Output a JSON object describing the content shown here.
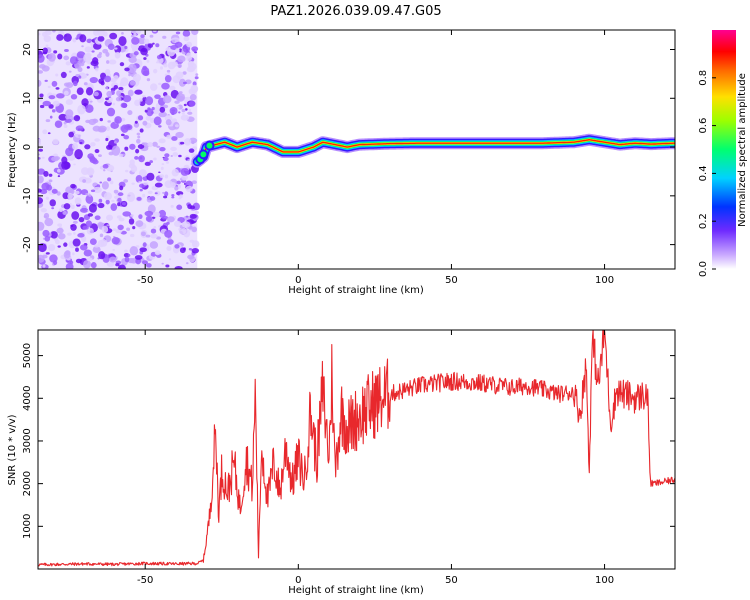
{
  "figure": {
    "title": "PAZ1.2026.039.09.47.G05"
  },
  "chart_data": [
    {
      "type": "heatmap",
      "name": "spectrogram",
      "xlabel": "Height of straight line (km)",
      "ylabel": "Frequency (Hz)",
      "xlim": [
        -85,
        123
      ],
      "ylim": [
        -25,
        24
      ],
      "xticks": [
        -50,
        0,
        50,
        100
      ],
      "yticks": [
        -20,
        -10,
        0,
        10,
        20
      ],
      "noise_region_x": [
        -85,
        -33
      ],
      "signal_ridge": {
        "x": [
          -33,
          -31,
          -30,
          -27,
          -24,
          -20,
          -15,
          -10,
          -5,
          0,
          5,
          8,
          12,
          16,
          20,
          30,
          40,
          60,
          80,
          90,
          95,
          100,
          105,
          110,
          115,
          123
        ],
        "freq": [
          -3,
          -2,
          0,
          0.5,
          1,
          0,
          1,
          0.5,
          -1,
          -1,
          0,
          1,
          0.5,
          0,
          0.5,
          0.7,
          0.8,
          0.8,
          0.8,
          1.0,
          1.5,
          1.0,
          0.5,
          0.8,
          0.6,
          0.8
        ]
      },
      "colorbar": {
        "label": "Normalized spectral amplitude",
        "range": [
          0.0,
          1.0
        ],
        "ticks": [
          "0.0",
          "0.2",
          "0.4",
          "0.6",
          "0.8"
        ],
        "tick_values": [
          0.0,
          0.2,
          0.4,
          0.6,
          0.8
        ]
      }
    },
    {
      "type": "line",
      "name": "snr",
      "xlabel": "Height of straight line (km)",
      "ylabel": "SNR (10 * v/v)",
      "xlim": [
        -85,
        123
      ],
      "ylim": [
        0,
        5600
      ],
      "xticks": [
        -50,
        0,
        50,
        100
      ],
      "yticks": [
        1000,
        2000,
        3000,
        4000,
        5000
      ],
      "series": [
        {
          "name": "SNR",
          "color": "#e8282c",
          "x": [
            -85,
            -70,
            -60,
            -50,
            -40,
            -33,
            -31,
            -29,
            -27,
            -26,
            -25,
            -23,
            -21,
            -19,
            -17,
            -15,
            -14,
            -13,
            -12,
            -10,
            -8,
            -6,
            -4,
            -2,
            0,
            2,
            4,
            6,
            8,
            10,
            11,
            12,
            14,
            16,
            20,
            25,
            30,
            35,
            40,
            45,
            50,
            55,
            60,
            65,
            70,
            75,
            80,
            85,
            90,
            92,
            94,
            95,
            96,
            98,
            100,
            102,
            104,
            106,
            110,
            114,
            115,
            116,
            120,
            123
          ],
          "y": [
            100,
            120,
            110,
            130,
            120,
            130,
            200,
            1200,
            3200,
            1300,
            2300,
            1800,
            2500,
            1400,
            2600,
            1900,
            4200,
            300,
            2900,
            1600,
            2500,
            1800,
            2900,
            2000,
            2600,
            2100,
            3700,
            2500,
            4200,
            2600,
            4600,
            2300,
            3700,
            3300,
            3600,
            3900,
            4100,
            4200,
            4300,
            4350,
            4400,
            4380,
            4350,
            4300,
            4250,
            4300,
            4200,
            4100,
            4150,
            3600,
            4800,
            2300,
            5400,
            4300,
            5600,
            3400,
            4200,
            4100,
            4000,
            4100,
            2000,
            2000,
            2050,
            2100
          ]
        }
      ]
    }
  ]
}
